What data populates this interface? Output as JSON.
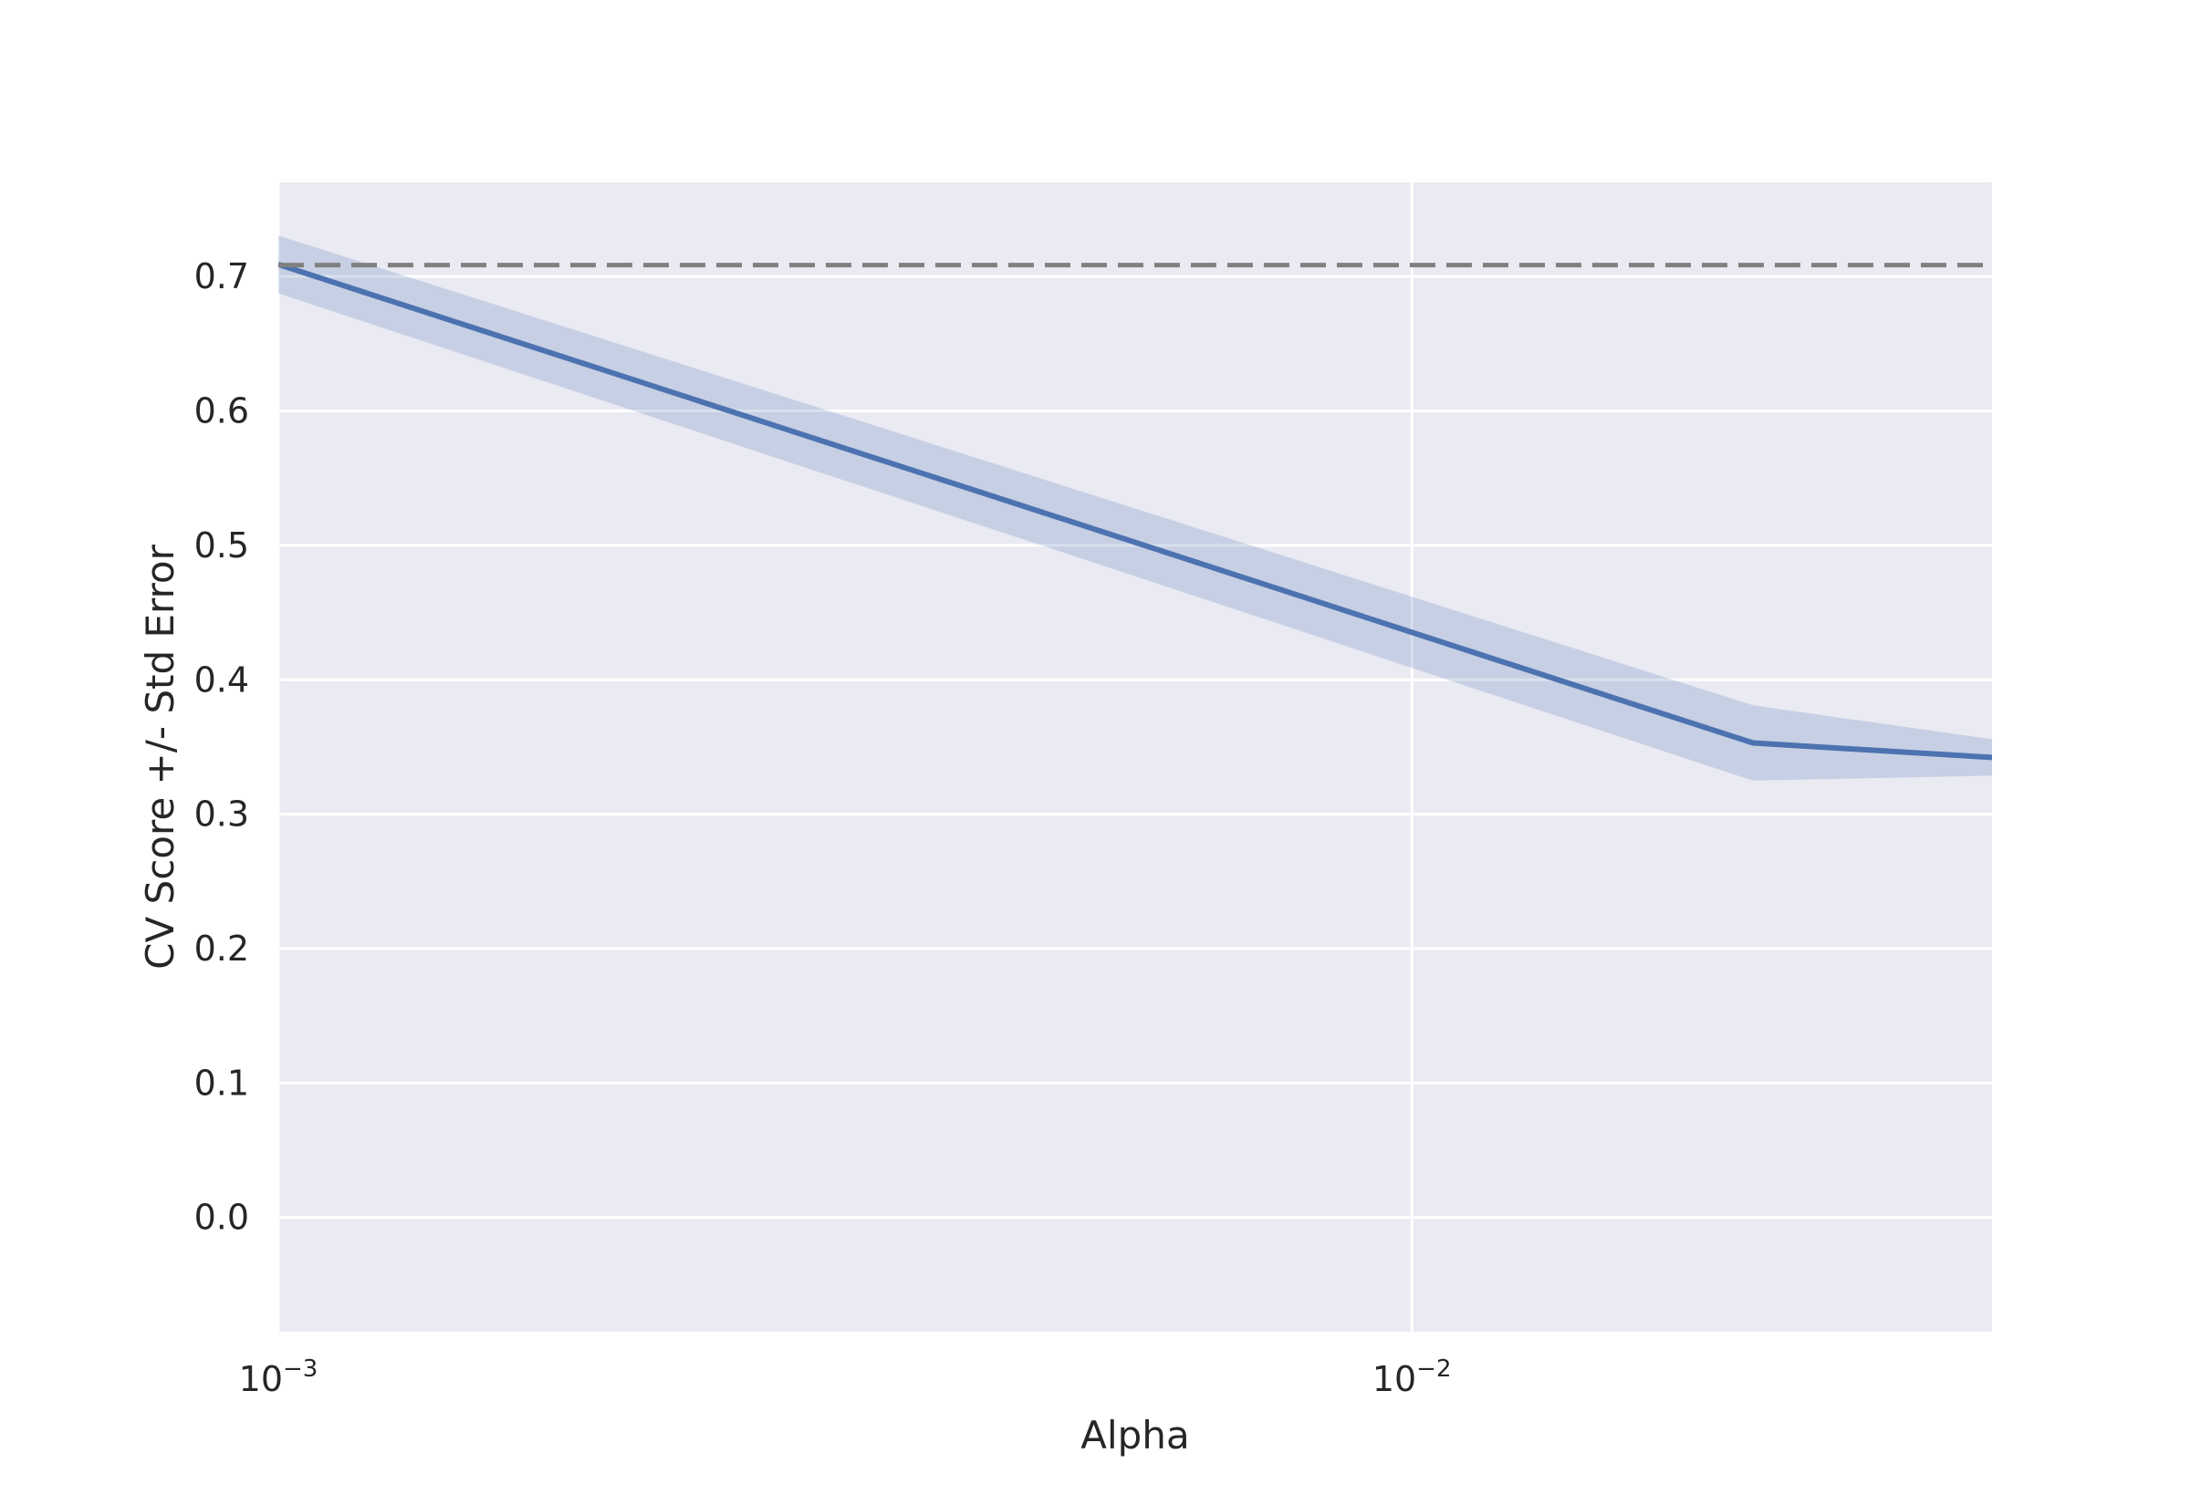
{
  "chart_data": {
    "type": "line",
    "title": "",
    "xlabel": "Alpha",
    "ylabel": "CV Score +/- Std Error",
    "xscale": "log",
    "xlim": [
      0.001,
      0.0325
    ],
    "ylim": [
      -0.085,
      0.77
    ],
    "grid": true,
    "background_color": "#eaeaf2",
    "grid_color": "#ffffff",
    "x_ticks": [
      {
        "value": 0.001,
        "base": "10",
        "exponent": "−3"
      },
      {
        "value": 0.01,
        "base": "10",
        "exponent": "−2"
      }
    ],
    "y_ticks": [
      {
        "value": 0.0,
        "label": "0.0"
      },
      {
        "value": 0.1,
        "label": "0.1"
      },
      {
        "value": 0.2,
        "label": "0.2"
      },
      {
        "value": 0.3,
        "label": "0.3"
      },
      {
        "value": 0.4,
        "label": "0.4"
      },
      {
        "value": 0.5,
        "label": "0.5"
      },
      {
        "value": 0.6,
        "label": "0.6"
      },
      {
        "value": 0.7,
        "label": "0.7"
      }
    ],
    "series": [
      {
        "color": "#4c72b0",
        "x": [
          0.001,
          0.002,
          0.003,
          0.005,
          0.0075,
          0.01,
          0.015,
          0.02,
          0.0325
        ],
        "y": [
          0.709,
          0.6266,
          0.5784,
          0.5178,
          0.4696,
          0.4353,
          0.3871,
          0.353,
          0.3422
        ],
        "y_upper": [
          0.7305,
          0.6496,
          0.6023,
          0.5427,
          0.4954,
          0.4618,
          0.4145,
          0.381,
          0.3557
        ],
        "y_lower": [
          0.6875,
          0.6036,
          0.5545,
          0.4929,
          0.4438,
          0.4088,
          0.3597,
          0.325,
          0.3287
        ]
      }
    ],
    "reference_lines": [
      {
        "orientation": "horizontal",
        "y": 0.7085,
        "style": "dashed",
        "color": "#808080"
      }
    ]
  }
}
